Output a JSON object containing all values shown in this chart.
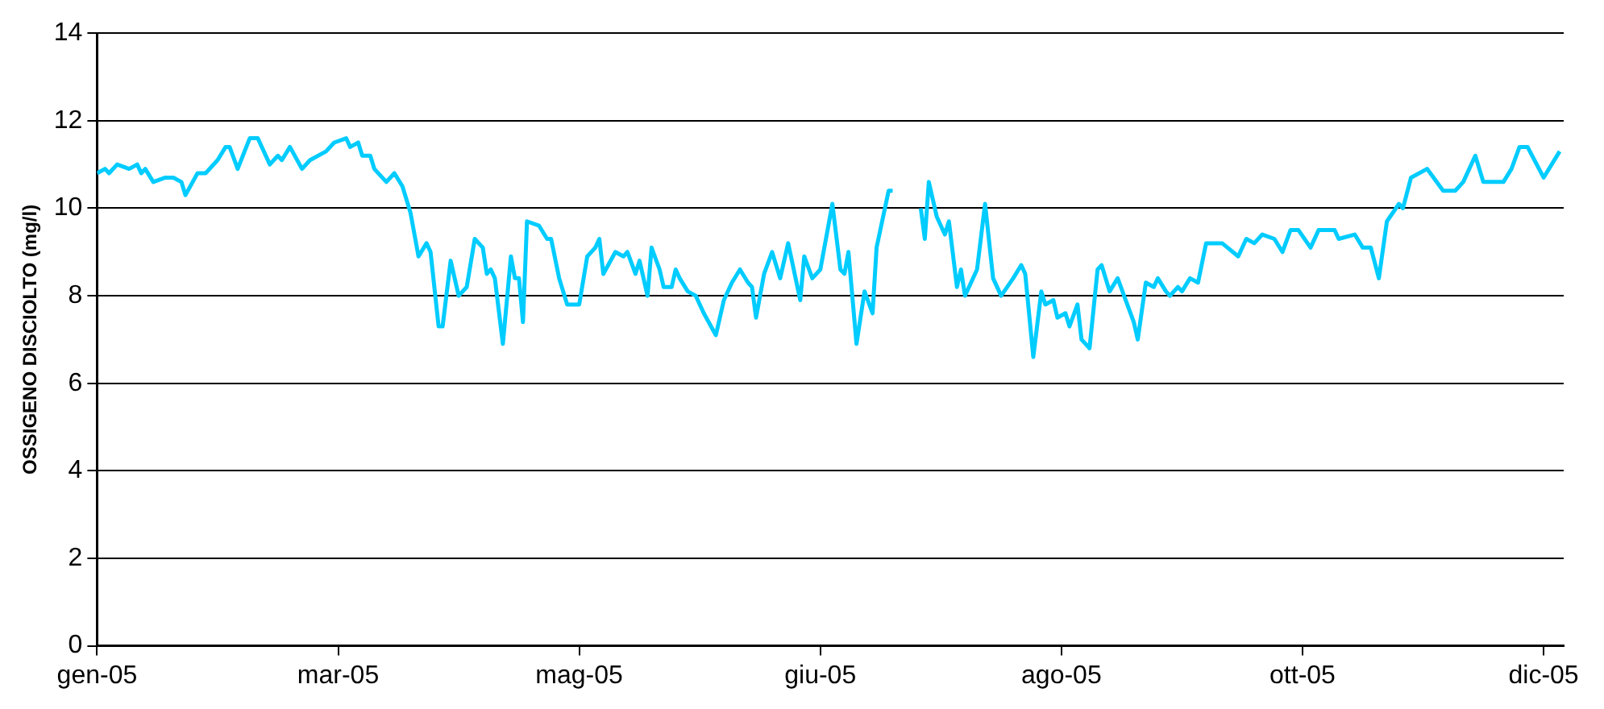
{
  "chart_data": {
    "type": "line",
    "ylabel": "OSSIGENO DISCIOLTO (mg/l)",
    "xlim": [
      "2005-01-01",
      "2006-01-01"
    ],
    "xticks": [
      {
        "value": "2005-01-01",
        "label": "gen-05"
      },
      {
        "value": "2005-03-02",
        "label": "mar-05"
      },
      {
        "value": "2005-05-01",
        "label": "mag-05"
      },
      {
        "value": "2005-06-30",
        "label": "giu-05"
      },
      {
        "value": "2005-08-29",
        "label": "ago-05"
      },
      {
        "value": "2005-10-28",
        "label": "ott-05"
      },
      {
        "value": "2005-12-27",
        "label": "dic-05"
      }
    ],
    "ylim": [
      0,
      14
    ],
    "yticks": [
      0,
      2,
      4,
      6,
      8,
      10,
      12,
      14
    ],
    "grid": "y",
    "marker": "none",
    "line_style": "solid",
    "series": [
      {
        "color": "#00ccff",
        "x": [
          "2005-01-01",
          "2005-01-03",
          "2005-01-04",
          "2005-01-06",
          "2005-01-09",
          "2005-01-11",
          "2005-01-12",
          "2005-01-13",
          "2005-01-15",
          "2005-01-18",
          "2005-01-20",
          "2005-01-22",
          "2005-01-23",
          "2005-01-26",
          "2005-01-28",
          "2005-01-31",
          "2005-02-02",
          "2005-02-03",
          "2005-02-05",
          "2005-02-08",
          "2005-02-10",
          "2005-02-13",
          "2005-02-15",
          "2005-02-16",
          "2005-02-18",
          "2005-02-21",
          "2005-02-23",
          "2005-02-27",
          "2005-03-01",
          "2005-03-04",
          "2005-03-05",
          "2005-03-07",
          "2005-03-08",
          "2005-03-10",
          "2005-03-11",
          "2005-03-14",
          "2005-03-16",
          "2005-03-18",
          "2005-03-20",
          "2005-03-22",
          "2005-03-24",
          "2005-03-25",
          "2005-03-27",
          "2005-03-28",
          "2005-03-30",
          "2005-04-01",
          "2005-04-03",
          "2005-04-05",
          "2005-04-07",
          "2005-04-08",
          "2005-04-09",
          "2005-04-10",
          "2005-04-12",
          "2005-04-14",
          "2005-04-15",
          "2005-04-16",
          "2005-04-17",
          "2005-04-18",
          "2005-04-21",
          "2005-04-23",
          "2005-04-24",
          "2005-04-26",
          "2005-04-28",
          "2005-05-01",
          "2005-05-03",
          "2005-05-05",
          "2005-05-06",
          "2005-05-07",
          "2005-05-10",
          "2005-05-12",
          "2005-05-13",
          "2005-05-15",
          "2005-05-16",
          "2005-05-18",
          "2005-05-19",
          "2005-05-21",
          "2005-05-22",
          "2005-05-24",
          "2005-05-25",
          "2005-05-26",
          "2005-05-28",
          "2005-05-30",
          "2005-06-01",
          "2005-06-04",
          "2005-06-06",
          "2005-06-08",
          "2005-06-10",
          "2005-06-12",
          "2005-06-13",
          "2005-06-14",
          "2005-06-16",
          "2005-06-18",
          "2005-06-20",
          "2005-06-22",
          "2005-06-25",
          "2005-06-26",
          "2005-06-28",
          "2005-06-30",
          "2005-07-03",
          "2005-07-05",
          "2005-07-06",
          "2005-07-07",
          "2005-07-09",
          "2005-07-11",
          "2005-07-13",
          "2005-07-14",
          "2005-07-17",
          "2005-07-18",
          "2005-07-22",
          "2005-07-25",
          "2005-07-26",
          "2005-07-27",
          "2005-07-29",
          "2005-07-31",
          "2005-08-01",
          "2005-08-03",
          "2005-08-04",
          "2005-08-05",
          "2005-08-08",
          "2005-08-10",
          "2005-08-12",
          "2005-08-14",
          "2005-08-17",
          "2005-08-19",
          "2005-08-20",
          "2005-08-22",
          "2005-08-24",
          "2005-08-25",
          "2005-08-27",
          "2005-08-28",
          "2005-08-30",
          "2005-08-31",
          "2005-09-02",
          "2005-09-03",
          "2005-09-05",
          "2005-09-07",
          "2005-09-08",
          "2005-09-10",
          "2005-09-12",
          "2005-09-14",
          "2005-09-16",
          "2005-09-17",
          "2005-09-19",
          "2005-09-21",
          "2005-09-22",
          "2005-09-24",
          "2005-09-25",
          "2005-09-27",
          "2005-09-28",
          "2005-09-30",
          "2005-10-02",
          "2005-10-04",
          "2005-10-06",
          "2005-10-08",
          "2005-10-12",
          "2005-10-14",
          "2005-10-16",
          "2005-10-18",
          "2005-10-21",
          "2005-10-23",
          "2005-10-25",
          "2005-10-27",
          "2005-10-30",
          "2005-11-01",
          "2005-11-05",
          "2005-11-06",
          "2005-11-10",
          "2005-11-12",
          "2005-11-14",
          "2005-11-16",
          "2005-11-18",
          "2005-11-21",
          "2005-11-22",
          "2005-11-24",
          "2005-11-28",
          "2005-12-02",
          "2005-12-05",
          "2005-12-07",
          "2005-12-10",
          "2005-12-12",
          "2005-12-15",
          "2005-12-17",
          "2005-12-19",
          "2005-12-21",
          "2005-12-23",
          "2005-12-27",
          "2005-12-31"
        ],
        "values": [
          10.8,
          10.9,
          10.8,
          11.0,
          10.9,
          11.0,
          10.8,
          10.9,
          10.6,
          10.7,
          10.7,
          10.6,
          10.3,
          10.8,
          10.8,
          11.1,
          11.4,
          11.4,
          10.9,
          11.6,
          11.6,
          11.0,
          11.2,
          11.1,
          11.4,
          10.9,
          11.1,
          11.3,
          11.5,
          11.6,
          11.4,
          11.5,
          11.2,
          11.2,
          10.9,
          10.6,
          10.8,
          10.5,
          9.9,
          8.9,
          9.2,
          9.0,
          7.3,
          7.3,
          8.8,
          8.0,
          8.2,
          9.3,
          9.1,
          8.5,
          8.6,
          8.4,
          6.9,
          8.9,
          8.4,
          8.4,
          7.4,
          9.7,
          9.6,
          9.3,
          9.3,
          8.4,
          7.8,
          7.8,
          8.9,
          9.1,
          9.3,
          8.5,
          9.0,
          8.9,
          9.0,
          8.5,
          8.8,
          8.0,
          9.1,
          8.6,
          8.2,
          8.2,
          8.6,
          8.4,
          8.1,
          8.0,
          7.6,
          7.1,
          7.9,
          8.3,
          8.6,
          8.3,
          8.2,
          7.5,
          8.5,
          9.0,
          8.4,
          9.2,
          7.9,
          8.9,
          8.4,
          8.6,
          10.1,
          8.6,
          8.5,
          9.0,
          6.9,
          8.1,
          7.6,
          9.1,
          10.4,
          10.4,
          null,
          10.0,
          9.3,
          10.6,
          9.8,
          9.4,
          9.7,
          8.2,
          8.6,
          8.0,
          8.6,
          10.1,
          8.4,
          8.0,
          8.4,
          8.7,
          8.5,
          6.6,
          8.1,
          7.8,
          7.9,
          7.5,
          7.6,
          7.3,
          7.8,
          7.0,
          6.8,
          8.6,
          8.7,
          8.1,
          8.4,
          7.9,
          7.4,
          7.0,
          8.3,
          8.2,
          8.4,
          8.1,
          8.0,
          8.2,
          8.1,
          8.4,
          8.3,
          9.2,
          9.2,
          9.2,
          8.9,
          9.3,
          9.2,
          9.4,
          9.3,
          9.0,
          9.5,
          9.5,
          9.1,
          9.5,
          9.5,
          9.3,
          9.4,
          9.1,
          9.1,
          8.4,
          9.7,
          10.1,
          10.0,
          10.7,
          10.9,
          10.4,
          10.4,
          10.6,
          11.2,
          10.6,
          10.6,
          10.6,
          10.9,
          11.4,
          11.4,
          10.7,
          11.3
        ]
      }
    ]
  }
}
